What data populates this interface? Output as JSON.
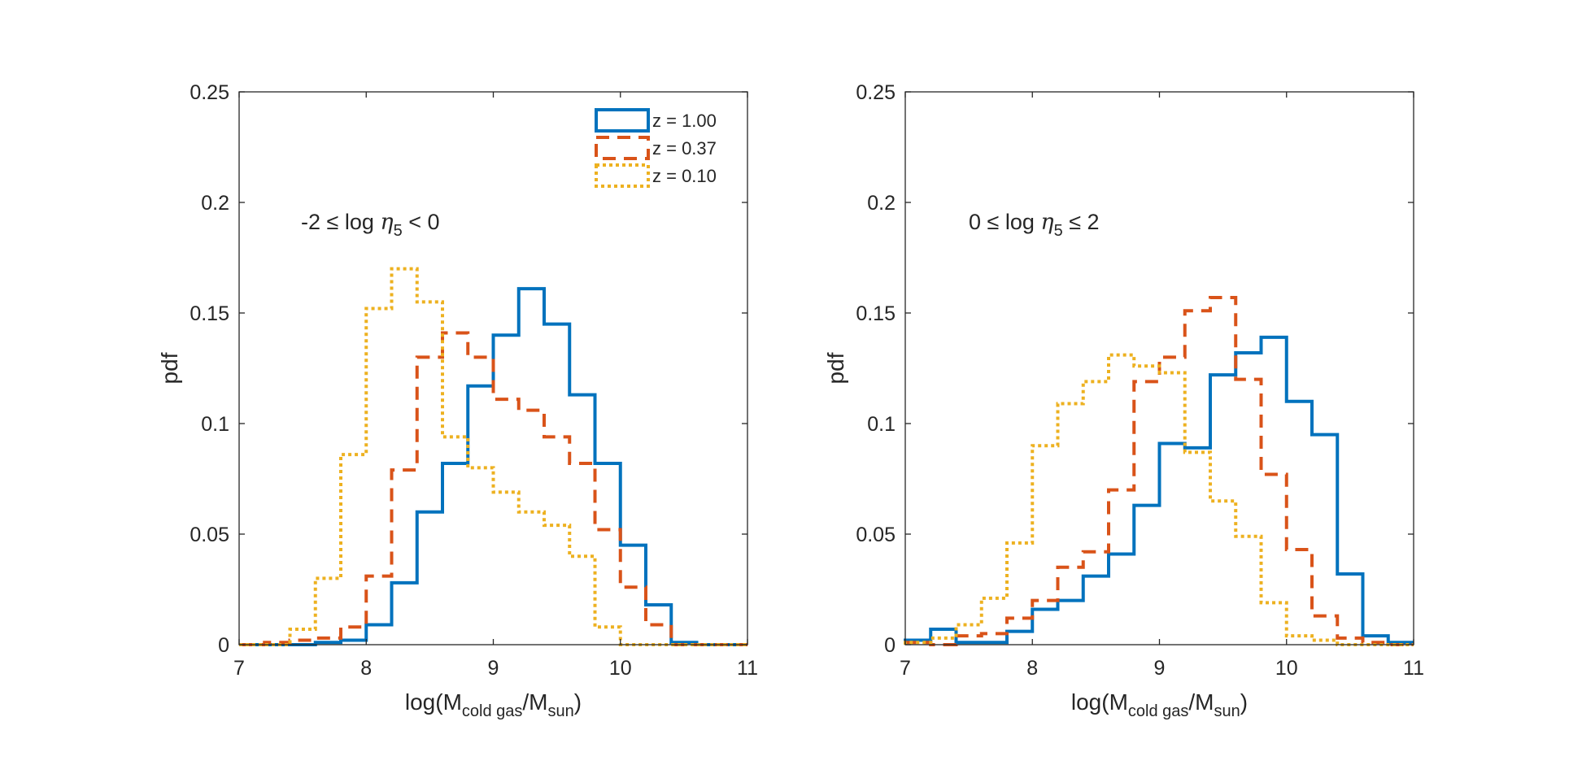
{
  "figure": {
    "legend": [
      {
        "label": "z = 1.00",
        "color": "#0072BD",
        "dash": "solid"
      },
      {
        "label": "z = 0.37",
        "color": "#D95319",
        "dash": "dashed"
      },
      {
        "label": "z = 0.10",
        "color": "#EDB120",
        "dash": "dotted"
      }
    ],
    "legend_location": "top-right of left panel"
  },
  "chart_data": [
    {
      "type": "histogram",
      "annotation": {
        "pre": "-2 ≤ log ",
        "sym": "η",
        "sub": "5",
        "post": " < 0"
      },
      "xlabel": {
        "pre": "log(M",
        "sub1": "cold gas",
        "mid": "/M",
        "sub2": "sun",
        "post": ")"
      },
      "ylabel": "pdf",
      "xlim": [
        7,
        11
      ],
      "ylim": [
        0,
        0.25
      ],
      "xticks": [
        "7",
        "8",
        "9",
        "10",
        "11"
      ],
      "yticks": [
        "0",
        "0.05",
        "0.1",
        "0.15",
        "0.2",
        "0.25"
      ],
      "bin_edges": [
        7.0,
        7.2,
        7.4,
        7.6,
        7.8,
        8.0,
        8.2,
        8.4,
        8.6,
        8.8,
        9.0,
        9.2,
        9.4,
        9.6,
        9.8,
        10.0,
        10.2,
        10.4,
        10.6,
        10.8,
        11.0
      ],
      "series": [
        {
          "name": "z = 1.00",
          "values": [
            0.0,
            0.0,
            0.0,
            0.001,
            0.002,
            0.009,
            0.028,
            0.06,
            0.082,
            0.117,
            0.14,
            0.161,
            0.145,
            0.113,
            0.082,
            0.045,
            0.018,
            0.001,
            0.0,
            0.0
          ]
        },
        {
          "name": "z = 0.37",
          "values": [
            0.0,
            0.001,
            0.002,
            0.003,
            0.008,
            0.031,
            0.079,
            0.13,
            0.141,
            0.13,
            0.111,
            0.106,
            0.094,
            0.082,
            0.052,
            0.026,
            0.009,
            0.0,
            0.0,
            0.0
          ]
        },
        {
          "name": "z = 0.10",
          "values": [
            0.0,
            0.0,
            0.007,
            0.03,
            0.086,
            0.152,
            0.17,
            0.155,
            0.094,
            0.08,
            0.069,
            0.06,
            0.054,
            0.04,
            0.008,
            0.0,
            0.0,
            0.0,
            0.0,
            0.0
          ]
        }
      ]
    },
    {
      "type": "histogram",
      "annotation": {
        "pre": "0 ≤ log ",
        "sym": "η",
        "sub": "5",
        "post": " ≤ 2"
      },
      "xlabel": {
        "pre": "log(M",
        "sub1": "cold gas",
        "mid": "/M",
        "sub2": "sun",
        "post": ")"
      },
      "ylabel": "pdf",
      "xlim": [
        7,
        11
      ],
      "ylim": [
        0,
        0.25
      ],
      "xticks": [
        "7",
        "8",
        "9",
        "10",
        "11"
      ],
      "yticks": [
        "0",
        "0.05",
        "0.1",
        "0.15",
        "0.2",
        "0.25"
      ],
      "bin_edges": [
        7.0,
        7.2,
        7.4,
        7.6,
        7.8,
        8.0,
        8.2,
        8.4,
        8.6,
        8.8,
        9.0,
        9.2,
        9.4,
        9.6,
        9.8,
        10.0,
        10.2,
        10.4,
        10.6,
        10.8,
        11.0
      ],
      "series": [
        {
          "name": "z = 1.00",
          "values": [
            0.002,
            0.007,
            0.001,
            0.001,
            0.006,
            0.016,
            0.02,
            0.031,
            0.041,
            0.063,
            0.091,
            0.089,
            0.122,
            0.132,
            0.139,
            0.11,
            0.095,
            0.032,
            0.004,
            0.001
          ]
        },
        {
          "name": "z = 0.37",
          "values": [
            0.001,
            0.0,
            0.004,
            0.005,
            0.012,
            0.02,
            0.035,
            0.042,
            0.07,
            0.119,
            0.13,
            0.151,
            0.157,
            0.12,
            0.077,
            0.043,
            0.013,
            0.003,
            0.001,
            0.0
          ]
        },
        {
          "name": "z = 0.10",
          "values": [
            0.001,
            0.003,
            0.009,
            0.021,
            0.046,
            0.09,
            0.109,
            0.119,
            0.131,
            0.126,
            0.123,
            0.087,
            0.065,
            0.049,
            0.019,
            0.004,
            0.002,
            0.0,
            0.0,
            0.0
          ]
        }
      ]
    }
  ]
}
